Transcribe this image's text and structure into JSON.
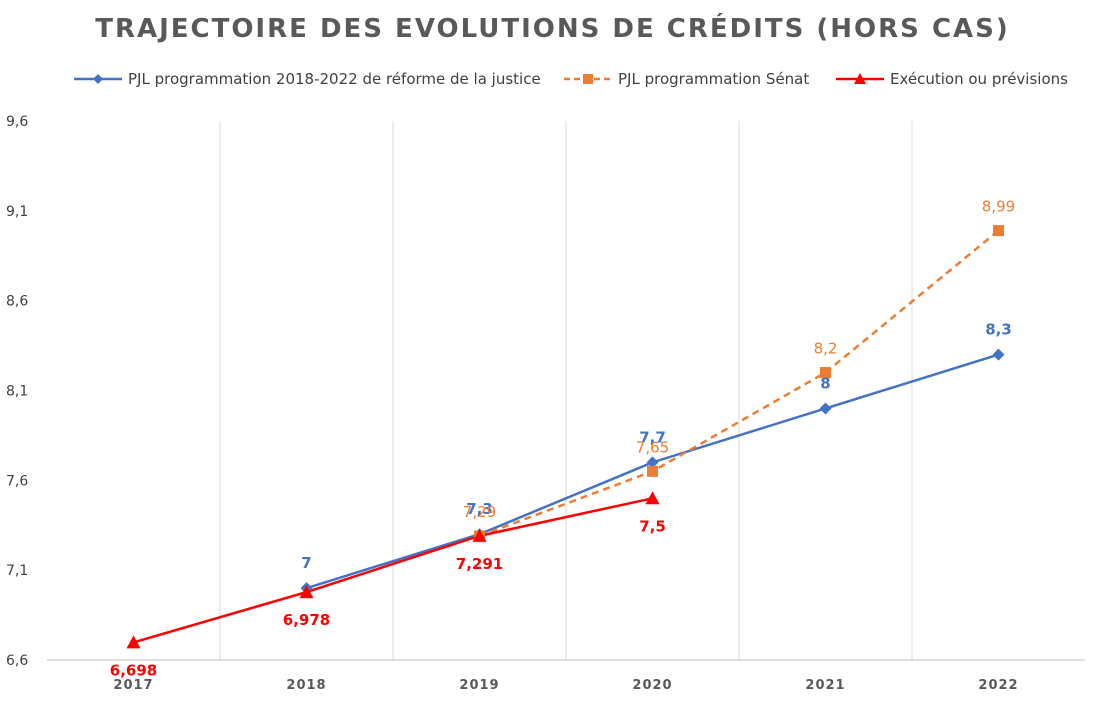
{
  "chart_data": {
    "type": "line",
    "title": "TRAJECTOIRE DES EVOLUTIONS DE CRÉDITS (HORS CAS)",
    "categories": [
      "2017",
      "2018",
      "2019",
      "2020",
      "2021",
      "2022"
    ],
    "ylim": [
      6.6,
      9.6
    ],
    "yticks": [
      "6,6",
      "7,1",
      "7,6",
      "8,1",
      "8,6",
      "9,1",
      "9,6"
    ],
    "xlabel": "",
    "ylabel": "",
    "grid": "vertical",
    "legend": "top",
    "series": [
      {
        "name": "PJL programmation 2018-2022 de réforme de la justice",
        "color": "#4472C4",
        "style": "solid",
        "marker": "diamond",
        "values": [
          null,
          7.0,
          7.3,
          7.7,
          8.0,
          8.3
        ],
        "labels": [
          null,
          "7",
          "7,3",
          "7,7",
          "8",
          "8,3"
        ]
      },
      {
        "name": "PJL programmation Sénat",
        "color": "#ED7D31",
        "style": "dashed",
        "marker": "square",
        "values": [
          null,
          null,
          7.29,
          7.65,
          8.2,
          8.99
        ],
        "labels": [
          null,
          null,
          "7,29",
          "7,65",
          "8,2",
          "8,99"
        ]
      },
      {
        "name": "Exécution ou prévisions",
        "color": "#FF0000",
        "style": "solid",
        "marker": "triangle",
        "values": [
          6.698,
          6.978,
          7.291,
          7.5,
          null,
          null
        ],
        "labels": [
          "6,698",
          "6,978",
          "7,291",
          "7,5",
          null,
          null
        ]
      }
    ]
  }
}
